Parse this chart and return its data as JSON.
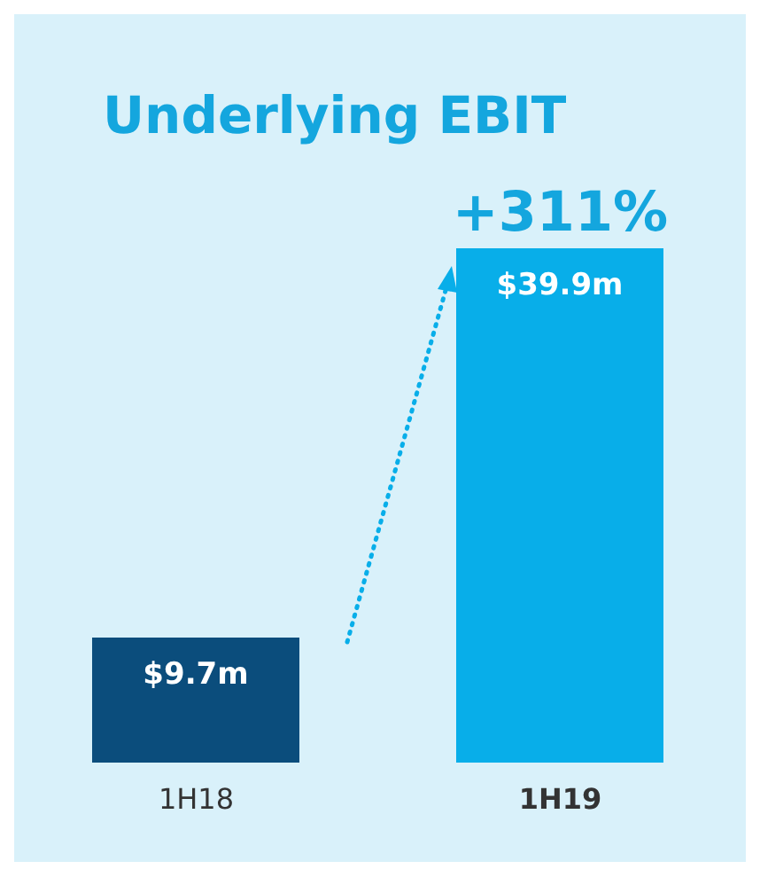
{
  "chart_data": {
    "type": "bar",
    "title": "Underlying EBIT",
    "categories": [
      "1H18",
      "1H19"
    ],
    "values": [
      9.7,
      39.9
    ],
    "colors": [
      "#0b4d7c",
      "#08aee9"
    ],
    "value_labels": [
      "$9.7m",
      "$39.9m"
    ],
    "annotations": [
      {
        "text": "+311%",
        "x": "1H19",
        "y": 39.9
      }
    ],
    "grid": false,
    "legend": false
  }
}
